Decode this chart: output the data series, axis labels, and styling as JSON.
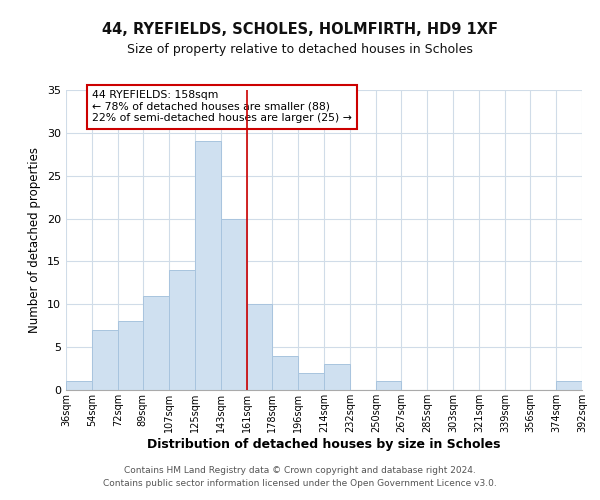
{
  "title": "44, RYEFIELDS, SCHOLES, HOLMFIRTH, HD9 1XF",
  "subtitle": "Size of property relative to detached houses in Scholes",
  "xlabel": "Distribution of detached houses by size in Scholes",
  "ylabel": "Number of detached properties",
  "bar_color": "#cfe0f0",
  "bar_edge_color": "#a8c4de",
  "bin_edges": [
    36,
    54,
    72,
    89,
    107,
    125,
    143,
    161,
    178,
    196,
    214,
    232,
    250,
    267,
    285,
    303,
    321,
    339,
    356,
    374,
    392
  ],
  "bar_heights": [
    1,
    7,
    8,
    11,
    14,
    29,
    20,
    10,
    4,
    2,
    3,
    0,
    1,
    0,
    0,
    0,
    0,
    0,
    0,
    1
  ],
  "tick_labels": [
    "36sqm",
    "54sqm",
    "72sqm",
    "89sqm",
    "107sqm",
    "125sqm",
    "143sqm",
    "161sqm",
    "178sqm",
    "196sqm",
    "214sqm",
    "232sqm",
    "250sqm",
    "267sqm",
    "285sqm",
    "303sqm",
    "321sqm",
    "339sqm",
    "356sqm",
    "374sqm",
    "392sqm"
  ],
  "vline_x": 161,
  "vline_color": "#cc0000",
  "annotation_text": "44 RYEFIELDS: 158sqm\n← 78% of detached houses are smaller (88)\n22% of semi-detached houses are larger (25) →",
  "annotation_box_color": "#ffffff",
  "annotation_box_edge_color": "#cc0000",
  "ylim": [
    0,
    35
  ],
  "yticks": [
    0,
    5,
    10,
    15,
    20,
    25,
    30,
    35
  ],
  "footer_text": "Contains HM Land Registry data © Crown copyright and database right 2024.\nContains public sector information licensed under the Open Government Licence v3.0.",
  "background_color": "#ffffff",
  "grid_color": "#d0dce8"
}
